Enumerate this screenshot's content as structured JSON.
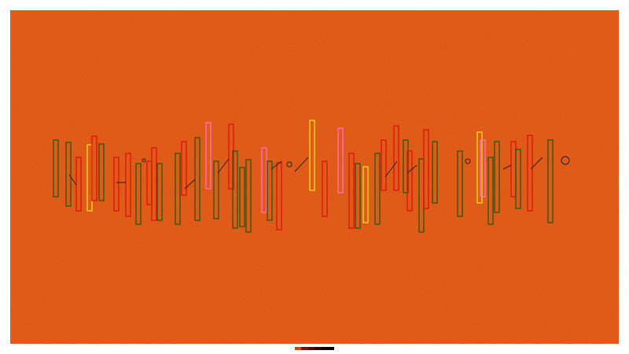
{
  "colors": {
    "background": "#d9480a",
    "background_light": "#e8631e",
    "outline_red": "#e01010",
    "outline_green": "#1e5a14",
    "outline_yellow": "#e8e020",
    "outline_pink": "#ff6ec8",
    "connector": "#222222"
  },
  "color_scale": [
    "#d9430a",
    "#8a0a08",
    "#5a0505",
    "#2a0202",
    "#120000",
    "#000000"
  ]
}
